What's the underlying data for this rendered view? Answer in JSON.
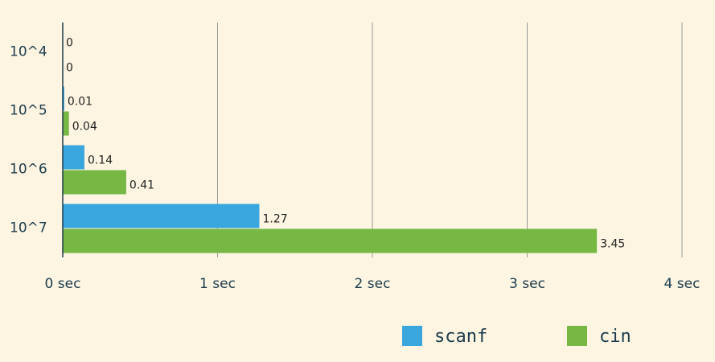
{
  "chart_data": {
    "type": "bar",
    "orientation": "horizontal",
    "categories": [
      "10^4",
      "10^5",
      "10^6",
      "10^7"
    ],
    "series": [
      {
        "name": "scanf",
        "color": "#3aa6de",
        "values": [
          0,
          0.01,
          0.14,
          1.27
        ]
      },
      {
        "name": "cin",
        "color": "#76b843",
        "values": [
          0,
          0.04,
          0.41,
          3.45
        ]
      }
    ],
    "xlim": [
      0,
      4
    ],
    "xticks": [
      {
        "value": 0,
        "label": "0 sec"
      },
      {
        "value": 1,
        "label": "1 sec"
      },
      {
        "value": 2,
        "label": "2 sec"
      },
      {
        "value": 3,
        "label": "3 sec"
      },
      {
        "value": 4,
        "label": "4 sec"
      }
    ],
    "grid": true,
    "legend": "bottom"
  }
}
